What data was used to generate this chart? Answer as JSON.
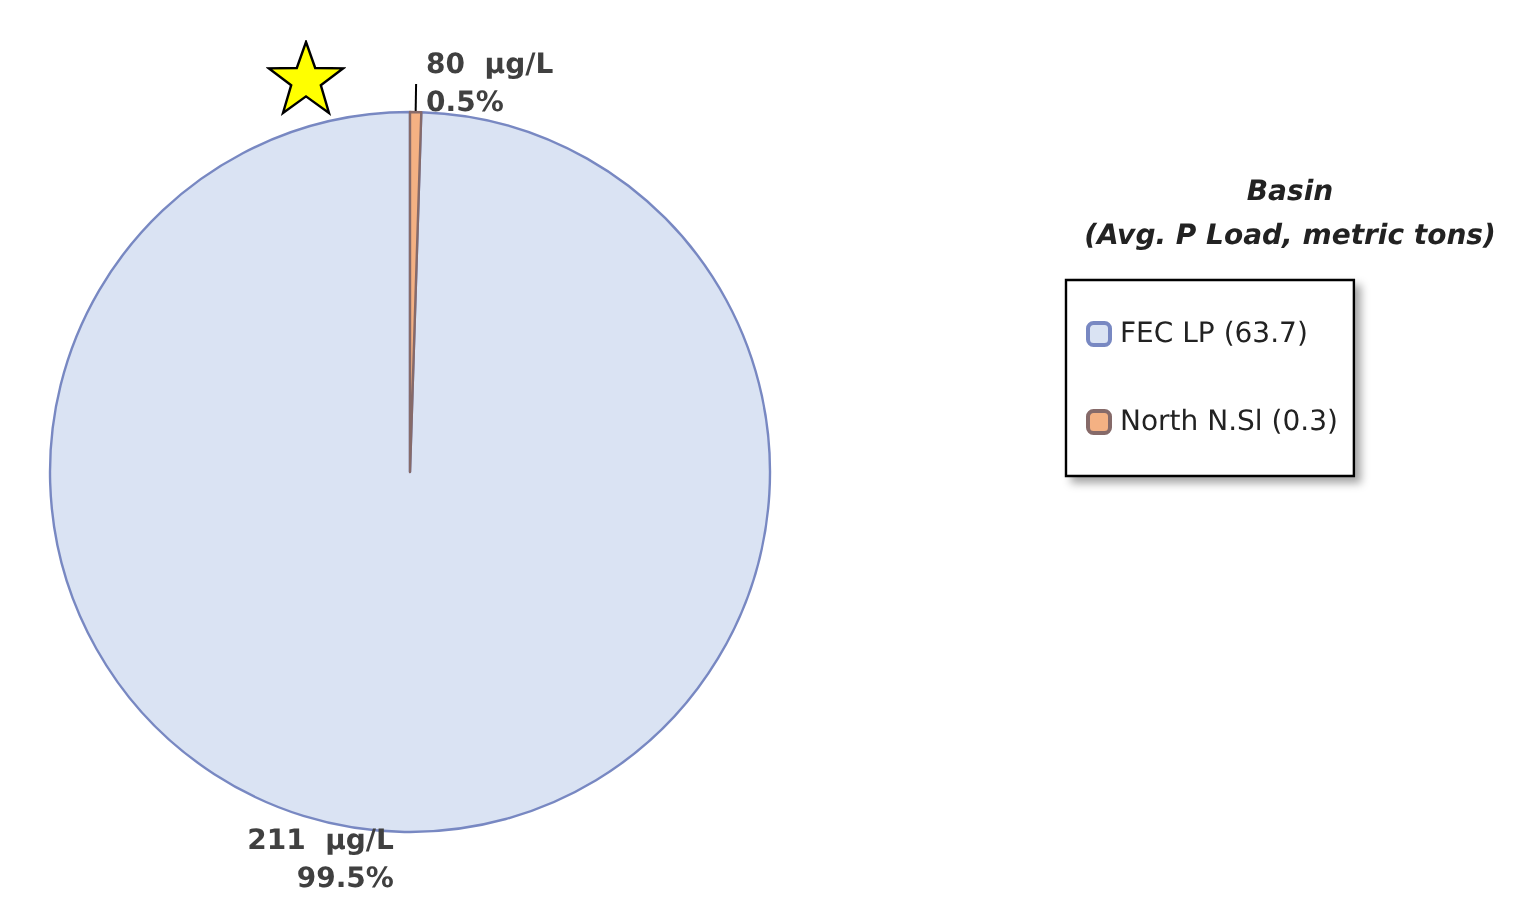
{
  "chart_data": {
    "type": "pie",
    "legend_title": "Basin\n(Avg. P Load, metric tons)",
    "categories": [
      "FEC LP (63.7)",
      "North N.Sl (0.3)"
    ],
    "values": [
      99.5,
      0.5
    ],
    "colors": [
      "#dae3f3",
      "#f4b183"
    ],
    "value_labels": [
      "211  µg/L\n99.5%",
      "80  µg/L\n0.5%"
    ],
    "legend": "right"
  }
}
